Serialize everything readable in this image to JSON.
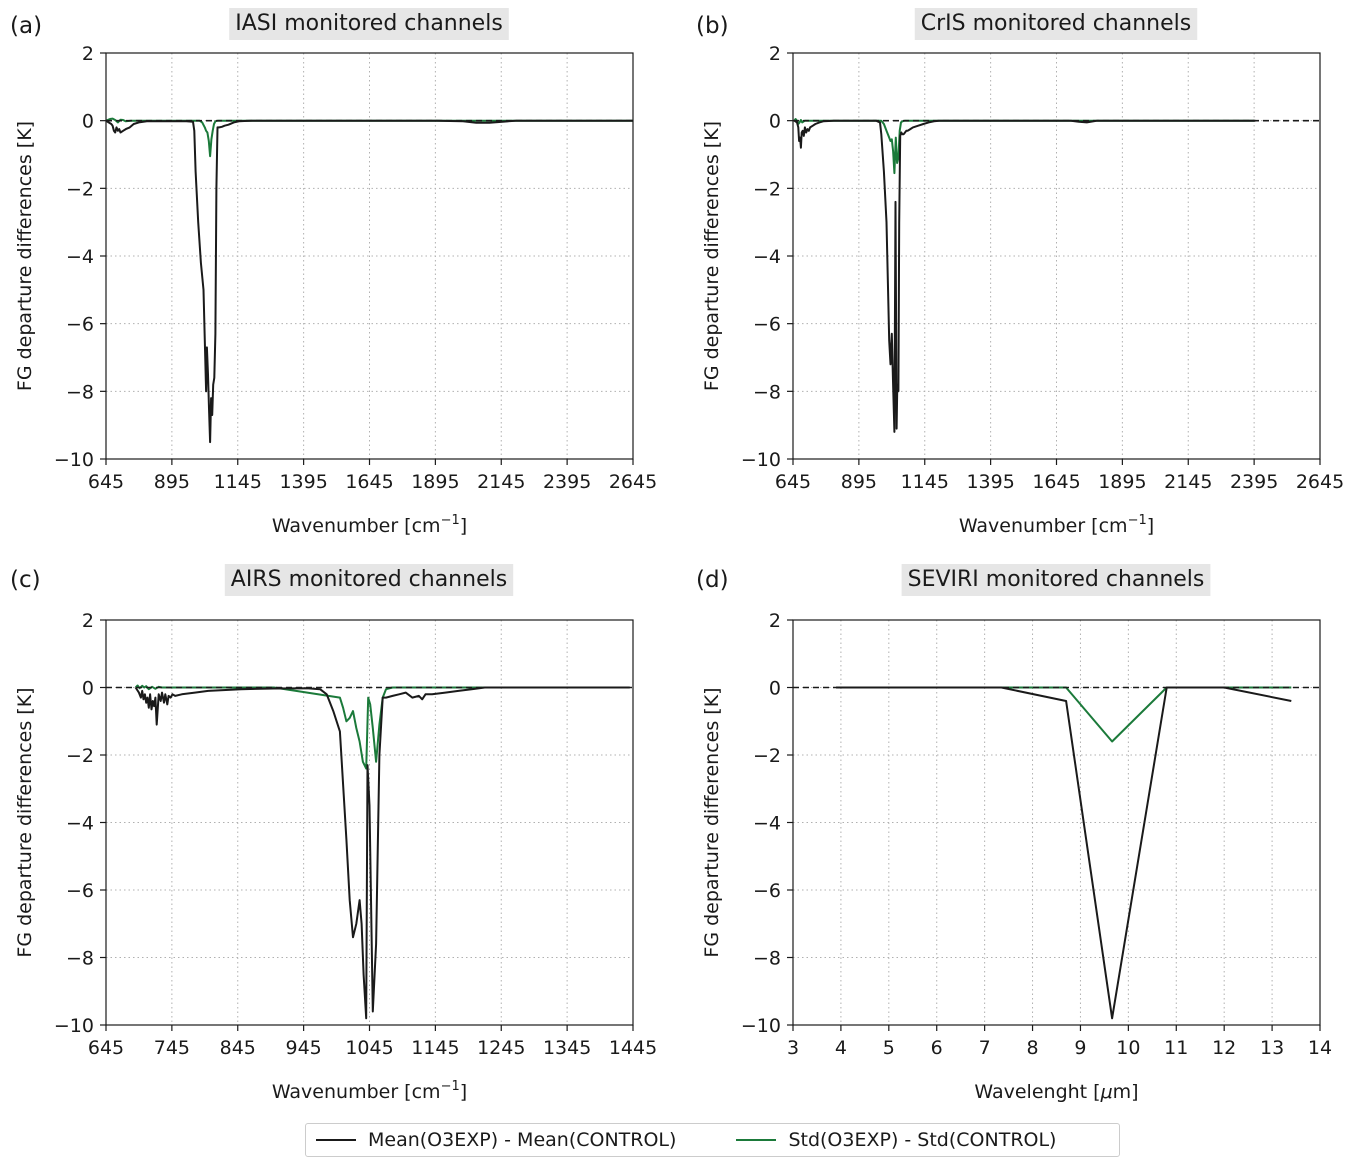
{
  "colors": {
    "mean": "#1a1a1a",
    "std": "#1b7a3a",
    "zero": "#1a1a1a",
    "title_bg": "#e6e6e6"
  },
  "legend": [
    {
      "label": "Mean(O3EXP) - Mean(CONTROL)",
      "color": "#1a1a1a"
    },
    {
      "label": "Std(O3EXP) - Std(CONTROL)",
      "color": "#1b7a3a"
    }
  ],
  "chart_data": [
    {
      "panel": "(a)",
      "type": "line",
      "title": "IASI monitored channels",
      "xlabel": "Wavenumber [cm",
      "xlabel_sup": "−1",
      "xlabel_end": "]",
      "ylabel": "FG departure differences [K]",
      "xlim": [
        645,
        2645
      ],
      "ylim": [
        -10,
        2
      ],
      "xticks": [
        645,
        895,
        1145,
        1395,
        1645,
        1895,
        2145,
        2395,
        2645
      ],
      "yticks": [
        2,
        0,
        -2,
        -4,
        -6,
        -8,
        -10
      ],
      "ytick_labels": [
        "2",
        "0",
        "−2",
        "−4",
        "−6",
        "−8",
        "−10"
      ],
      "zero_line": [
        645,
        2645
      ],
      "series": [
        {
          "key": "mean",
          "x": [
            645,
            655,
            665,
            670,
            675,
            680,
            685,
            690,
            695,
            700,
            710,
            720,
            735,
            750,
            770,
            800,
            850,
            900,
            950,
            975,
            980,
            985,
            995,
            1005,
            1015,
            1020,
            1025,
            1028,
            1032,
            1036,
            1040,
            1044,
            1048,
            1052,
            1056,
            1060,
            1064,
            1068,
            1075,
            1085,
            1095,
            1110,
            1130,
            1150,
            1170,
            1200,
            1300,
            1500,
            1700,
            1900,
            2000,
            2050,
            2100,
            2150,
            2200,
            2645
          ],
          "y": [
            0,
            -0.05,
            -0.1,
            -0.15,
            -0.3,
            -0.35,
            -0.2,
            -0.3,
            -0.25,
            -0.35,
            -0.3,
            -0.25,
            -0.2,
            -0.1,
            -0.05,
            -0.02,
            -0.02,
            -0.02,
            -0.02,
            -0.03,
            -0.3,
            -1.5,
            -3.0,
            -4.2,
            -5.0,
            -6.5,
            -8.0,
            -6.7,
            -7.5,
            -8.5,
            -9.5,
            -8.2,
            -8.7,
            -7.8,
            -7.6,
            -6.3,
            -2.0,
            -0.2,
            -0.2,
            -0.18,
            -0.15,
            -0.12,
            -0.05,
            -0.02,
            -0.01,
            0,
            0,
            0,
            0,
            0,
            -0.02,
            -0.06,
            -0.06,
            -0.03,
            0,
            0
          ]
        },
        {
          "key": "std",
          "x": [
            645,
            660,
            670,
            680,
            690,
            700,
            710,
            720,
            740,
            800,
            900,
            1000,
            1010,
            1020,
            1025,
            1030,
            1035,
            1040,
            1045,
            1050,
            1055,
            1060,
            1070,
            1100,
            1200,
            1500,
            2000,
            2645
          ],
          "y": [
            0,
            0.05,
            0.06,
            0.02,
            -0.05,
            0.03,
            0.02,
            -0.02,
            0,
            0,
            0,
            0,
            -0.05,
            -0.2,
            -0.3,
            -0.35,
            -0.6,
            -1.05,
            -0.55,
            -0.3,
            -0.1,
            -0.02,
            0,
            0,
            0,
            0,
            0,
            0
          ]
        }
      ]
    },
    {
      "panel": "(b)",
      "type": "line",
      "title": "CrIS monitored channels",
      "xlabel": "Wavenumber [cm",
      "xlabel_sup": "−1",
      "xlabel_end": "]",
      "ylabel": "FG departure differences [K]",
      "xlim": [
        645,
        2645
      ],
      "ylim": [
        -10,
        2
      ],
      "xticks": [
        645,
        895,
        1145,
        1395,
        1645,
        1895,
        2145,
        2395,
        2645
      ],
      "yticks": [
        2,
        0,
        -2,
        -4,
        -6,
        -8,
        -10
      ],
      "ytick_labels": [
        "2",
        "0",
        "−2",
        "−4",
        "−6",
        "−8",
        "−10"
      ],
      "zero_line": [
        645,
        2645
      ],
      "series": [
        {
          "key": "mean",
          "x": [
            650,
            660,
            665,
            668,
            672,
            675,
            678,
            682,
            686,
            690,
            695,
            700,
            705,
            710,
            720,
            730,
            745,
            760,
            800,
            900,
            960,
            975,
            980,
            990,
            1000,
            1005,
            1010,
            1015,
            1020,
            1025,
            1030,
            1034,
            1038,
            1041,
            1045,
            1048,
            1052,
            1056,
            1060,
            1065,
            1070,
            1075,
            1080,
            1090,
            1100,
            1120,
            1140,
            1160,
            1180,
            1200,
            1300,
            1500,
            1700,
            1730,
            1760,
            1800,
            2000,
            2200,
            2400
          ],
          "y": [
            0,
            -0.05,
            -0.2,
            -0.6,
            -0.5,
            -0.8,
            -0.35,
            -0.3,
            -0.45,
            -0.2,
            -0.35,
            -0.25,
            -0.3,
            -0.2,
            -0.15,
            -0.1,
            -0.05,
            -0.02,
            0,
            0,
            0,
            -0.05,
            -0.4,
            -1.5,
            -3.0,
            -4.8,
            -6.5,
            -7.2,
            -6.3,
            -7.8,
            -9.2,
            -2.4,
            -9.1,
            -7.8,
            -8.0,
            -3.0,
            -0.45,
            -0.35,
            -0.4,
            -0.4,
            -0.35,
            -0.3,
            -0.3,
            -0.25,
            -0.2,
            -0.15,
            -0.1,
            -0.05,
            -0.02,
            0,
            0,
            0,
            0,
            -0.03,
            -0.05,
            0,
            0,
            0,
            0
          ]
        },
        {
          "key": "std",
          "x": [
            650,
            655,
            660,
            665,
            670,
            675,
            680,
            690,
            700,
            800,
            900,
            980,
            990,
            1000,
            1010,
            1015,
            1020,
            1025,
            1030,
            1035,
            1040,
            1045,
            1050,
            1055,
            1060,
            1070,
            1100,
            1200,
            1500,
            2000,
            2395
          ],
          "y": [
            0,
            0.05,
            0,
            -0.1,
            -0.05,
            0.02,
            -0.05,
            0,
            0,
            0,
            0,
            0,
            -0.1,
            -0.3,
            -0.5,
            -0.6,
            -0.55,
            -0.9,
            -1.55,
            -0.5,
            -1.25,
            -1.1,
            -0.3,
            -0.05,
            -0.02,
            0,
            0,
            0,
            0,
            0,
            0
          ]
        }
      ]
    },
    {
      "panel": "(c)",
      "type": "line",
      "title": "AIRS monitored channels",
      "xlabel": "Wavenumber [cm",
      "xlabel_sup": "−1",
      "xlabel_end": "]",
      "ylabel": "FG departure differences [K]",
      "xlim": [
        645,
        1445
      ],
      "ylim": [
        -10,
        2
      ],
      "xticks": [
        645,
        745,
        845,
        945,
        1045,
        1145,
        1245,
        1345,
        1445
      ],
      "yticks": [
        2,
        0,
        -2,
        -4,
        -6,
        -8,
        -10
      ],
      "ytick_labels": [
        "2",
        "0",
        "−2",
        "−4",
        "−6",
        "−8",
        "−10"
      ],
      "zero_line": [
        645,
        1445
      ],
      "series": [
        {
          "key": "mean",
          "x": [
            690,
            695,
            698,
            700,
            702,
            704,
            706,
            708,
            710,
            712,
            714,
            716,
            718,
            720,
            722,
            725,
            728,
            730,
            733,
            735,
            738,
            740,
            743,
            746,
            750,
            760,
            780,
            800,
            850,
            900,
            950,
            970,
            980,
            990,
            1000,
            1010,
            1015,
            1020,
            1025,
            1030,
            1033,
            1036,
            1040,
            1042,
            1045,
            1050,
            1055,
            1060,
            1065,
            1070,
            1080,
            1090,
            1100,
            1110,
            1120,
            1125,
            1130,
            1140,
            1160,
            1180,
            1200,
            1220,
            1240,
            1300,
            1400,
            1440
          ],
          "y": [
            0,
            -0.15,
            -0.3,
            -0.1,
            -0.35,
            -0.2,
            -0.45,
            -0.3,
            -0.6,
            -0.2,
            -0.65,
            -0.4,
            -0.55,
            -0.3,
            -1.1,
            -0.2,
            -0.4,
            -0.15,
            -0.45,
            -0.2,
            -0.5,
            -0.25,
            -0.3,
            -0.2,
            -0.25,
            -0.2,
            -0.15,
            -0.1,
            -0.05,
            -0.03,
            -0.02,
            -0.05,
            -0.2,
            -0.7,
            -1.3,
            -4.5,
            -6.3,
            -7.4,
            -7.0,
            -6.3,
            -7.0,
            -8.5,
            -9.8,
            -2.3,
            -3.5,
            -9.6,
            -7.6,
            -2.0,
            -0.3,
            -0.3,
            -0.25,
            -0.2,
            -0.15,
            -0.3,
            -0.25,
            -0.35,
            -0.2,
            -0.2,
            -0.15,
            -0.1,
            -0.05,
            0,
            0,
            0,
            0,
            0
          ]
        },
        {
          "key": "std",
          "x": [
            690,
            693,
            696,
            700,
            703,
            706,
            710,
            715,
            720,
            725,
            730,
            750,
            800,
            900,
            1000,
            1005,
            1010,
            1015,
            1020,
            1025,
            1030,
            1035,
            1040,
            1043,
            1046,
            1050,
            1055,
            1060,
            1065,
            1070,
            1080,
            1100,
            1200,
            1300,
            1440
          ],
          "y": [
            0,
            0.06,
            -0.02,
            0.05,
            0,
            0.04,
            -0.05,
            0.02,
            -0.04,
            0.02,
            0,
            0,
            0,
            0,
            -0.3,
            -0.6,
            -1.0,
            -0.9,
            -0.7,
            -1.2,
            -1.6,
            -2.2,
            -2.4,
            -0.3,
            -0.5,
            -1.2,
            -2.2,
            -1.1,
            -0.3,
            -0.05,
            0,
            0,
            0,
            0,
            0
          ]
        }
      ]
    },
    {
      "panel": "(d)",
      "type": "line",
      "title": "SEVIRI monitored channels",
      "xlabel": "Wavelenght [",
      "xlabel_mu": "μ",
      "xlabel_end": "m]",
      "ylabel": "FG departure differences [K]",
      "xlim": [
        3,
        14
      ],
      "ylim": [
        -10,
        2
      ],
      "xticks": [
        3,
        4,
        5,
        6,
        7,
        8,
        9,
        10,
        11,
        12,
        13,
        14
      ],
      "yticks": [
        2,
        0,
        -2,
        -4,
        -6,
        -8,
        -10
      ],
      "ytick_labels": [
        "2",
        "0",
        "−2",
        "−4",
        "−6",
        "−8",
        "−10"
      ],
      "zero_line": [
        3,
        14
      ],
      "series": [
        {
          "key": "mean",
          "x": [
            3.9,
            6.25,
            7.35,
            8.7,
            9.66,
            10.8,
            12.0,
            13.4
          ],
          "y": [
            0,
            0,
            0,
            -0.4,
            -9.8,
            0,
            0,
            -0.4
          ]
        },
        {
          "key": "std",
          "x": [
            3.9,
            6.25,
            7.35,
            8.7,
            9.66,
            10.8,
            12.0,
            13.4
          ],
          "y": [
            0,
            0,
            0,
            0,
            -1.6,
            0,
            0,
            0
          ]
        }
      ]
    }
  ]
}
